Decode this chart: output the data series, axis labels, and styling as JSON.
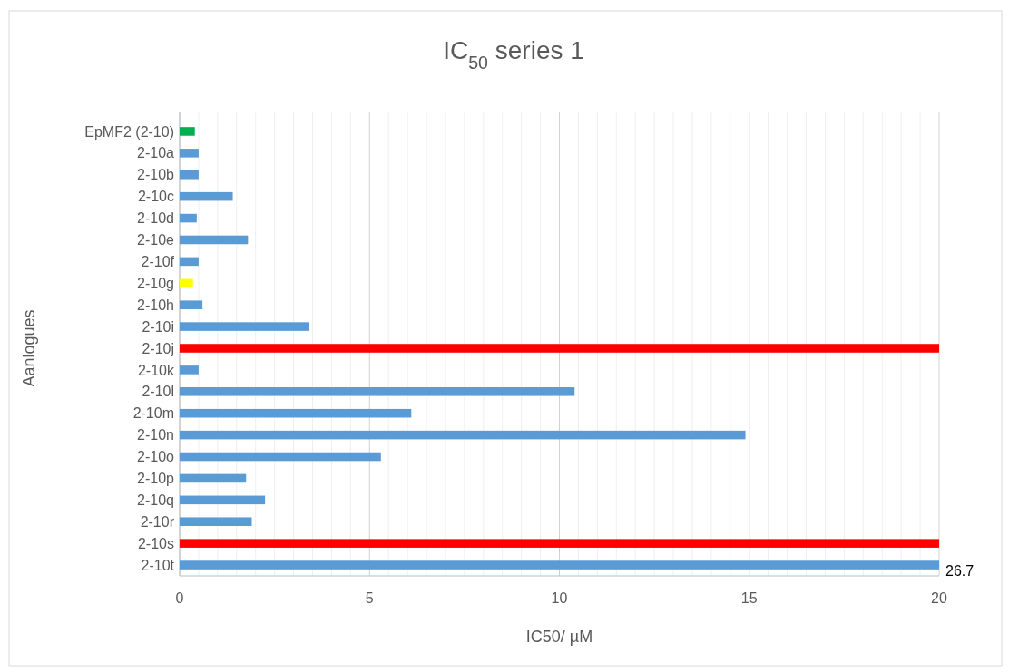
{
  "chart_data": {
    "type": "bar",
    "orientation": "horizontal",
    "title": "IC$_{50}$ series 1",
    "xlabel": "IC50/ µM",
    "ylabel": "Aanlogues",
    "categories": [
      "EpMF2 (2-10)",
      "2-10a",
      "2-10b",
      "2-10c",
      "2-10d",
      "2-10e",
      "2-10f",
      "2-10g",
      "2-10h",
      "2-10i",
      "2-10j",
      "2-10k",
      "2-10l",
      "2-10m",
      "2-10n",
      "2-10o",
      "2-10p",
      "2-10q",
      "2-10r",
      "2-10s",
      "2-10t"
    ],
    "values": [
      0.4,
      0.5,
      0.5,
      1.4,
      0.45,
      1.8,
      0.5,
      0.35,
      0.6,
      3.4,
      20,
      0.5,
      10.4,
      6.1,
      14.9,
      5.3,
      1.75,
      2.25,
      1.9,
      20,
      20
    ],
    "colors": [
      "#00b050",
      "#5b9bd5",
      "#5b9bd5",
      "#5b9bd5",
      "#5b9bd5",
      "#5b9bd5",
      "#5b9bd5",
      "#ffff00",
      "#5b9bd5",
      "#5b9bd5",
      "#ff0000",
      "#5b9bd5",
      "#5b9bd5",
      "#5b9bd5",
      "#5b9bd5",
      "#5b9bd5",
      "#5b9bd5",
      "#5b9bd5",
      "#5b9bd5",
      "#ff0000",
      "#5b9bd5"
    ],
    "xlim": [
      0,
      20
    ],
    "xticks": [
      0,
      {
        "value": 0.5,
        "label": null
      },
      {
        "value": 1,
        "label": null
      },
      {
        "value": 1.5,
        "label": null
      },
      {
        "value": 2,
        "label": null
      },
      {
        "value": 2.5,
        "label": null
      },
      {
        "value": 3,
        "label": null
      },
      {
        "value": 3.5,
        "label": null
      },
      {
        "value": 4,
        "label": null
      },
      {
        "value": 4.5,
        "label": null
      },
      5,
      {
        "value": 5.5,
        "label": null
      },
      {
        "value": 6,
        "label": null
      },
      {
        "value": 6.5,
        "label": null
      },
      {
        "value": 7,
        "label": null
      },
      {
        "value": 7.5,
        "label": null
      },
      {
        "value": 8,
        "label": null
      },
      {
        "value": 8.5,
        "label": null
      },
      {
        "value": 9,
        "label": null
      },
      {
        "value": 9.5,
        "label": null
      },
      10,
      {
        "value": 10.5,
        "label": null
      },
      {
        "value": 11,
        "label": null
      },
      {
        "value": 11.5,
        "label": null
      },
      {
        "value": 12,
        "label": null
      },
      {
        "value": 12.5,
        "label": null
      },
      {
        "value": 13,
        "label": null
      },
      {
        "value": 13.5,
        "label": null
      },
      {
        "value": 14,
        "label": null
      },
      {
        "value": 14.5,
        "label": null
      },
      15,
      {
        "value": 15.5,
        "label": null
      },
      {
        "value": 16,
        "label": null
      },
      {
        "value": 16.5,
        "label": null
      },
      {
        "value": 17,
        "label": null
      },
      {
        "value": 17.5,
        "label": null
      },
      {
        "value": 18,
        "label": null
      },
      {
        "value": 18.5,
        "label": null
      },
      {
        "value": 19,
        "label": null
      },
      {
        "value": 19.5,
        "label": null
      },
      20
    ],
    "grid": "x",
    "annotations": [
      {
        "text": "26.7",
        "x": 20,
        "y": "2-10t"
      }
    ]
  }
}
